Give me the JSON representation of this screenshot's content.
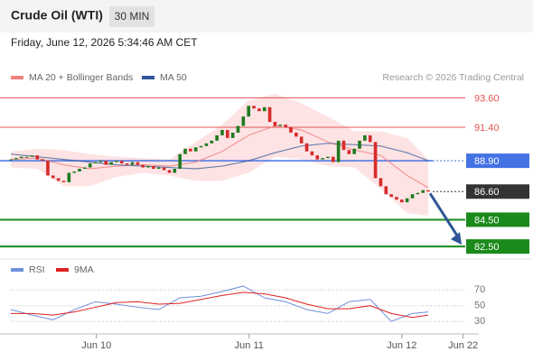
{
  "chart_data": [
    {
      "type": "candlestick",
      "title": "Crude Oil (WTI)",
      "timeframe": "30 MIN",
      "timestamp": "Friday, June 12, 2026 5:34:46 AM CET",
      "credit": "Research © 2026 Trading Central",
      "closes": [
        89.0,
        89.1,
        89.2,
        89.2,
        89.3,
        89.0,
        88.9,
        87.8,
        87.6,
        87.4,
        87.3,
        88.0,
        88.1,
        88.3,
        88.4,
        88.7,
        88.8,
        88.9,
        88.6,
        88.8,
        88.9,
        88.7,
        88.6,
        88.8,
        88.6,
        88.4,
        88.5,
        88.3,
        88.4,
        88.2,
        88.0,
        88.3,
        89.4,
        89.8,
        89.6,
        89.9,
        90.0,
        90.2,
        90.4,
        90.8,
        91.2,
        90.6,
        91.0,
        91.5,
        92.2,
        93.0,
        92.8,
        92.6,
        92.9,
        91.8,
        91.5,
        91.6,
        91.4,
        91.0,
        90.7,
        90.2,
        89.6,
        89.3,
        89.0,
        89.1,
        89.2,
        88.8,
        90.4,
        89.7,
        89.4,
        89.8,
        90.4,
        90.8,
        90.3,
        87.6,
        87.0,
        86.4,
        86.2,
        86.0,
        85.8,
        86.1,
        86.4,
        86.5,
        86.7,
        86.6
      ],
      "up_color": "#1f7a1f",
      "down_color": "#d62b2b",
      "indicator_x": [
        0,
        5,
        10,
        15,
        20,
        25,
        30,
        35,
        40,
        45,
        50,
        55,
        60,
        65,
        70,
        75,
        79
      ],
      "series": [
        {
          "name": "MA 20 + Bollinger Bands",
          "color": "#f08080",
          "values": [
            89.0,
            89.1,
            88.6,
            88.3,
            88.5,
            88.6,
            88.5,
            88.8,
            89.6,
            90.8,
            91.5,
            91.2,
            90.3,
            89.7,
            89.3,
            87.8,
            86.9
          ],
          "upper": [
            89.6,
            89.8,
            89.7,
            89.4,
            89.2,
            89.1,
            89.0,
            90.3,
            91.6,
            93.4,
            93.9,
            93.2,
            92.2,
            91.1,
            91.1,
            90.6,
            89.0
          ],
          "lower": [
            88.4,
            88.3,
            87.0,
            87.0,
            87.7,
            88.0,
            87.8,
            87.4,
            87.4,
            88.0,
            89.2,
            89.0,
            88.5,
            88.4,
            86.8,
            85.0,
            84.8
          ]
        },
        {
          "name": "MA 50",
          "color": "#2f5597",
          "values": [
            89.4,
            89.2,
            89.0,
            88.8,
            88.6,
            88.5,
            88.4,
            88.3,
            88.5,
            88.9,
            89.5,
            90.0,
            90.2,
            90.1,
            90.0,
            89.5,
            88.9
          ]
        }
      ],
      "levels": [
        {
          "value": 93.6,
          "label": "93.60",
          "color": "#e05555",
          "line": "thin",
          "box": false
        },
        {
          "value": 91.4,
          "label": "91.40",
          "color": "#e05555",
          "line": "thin",
          "box": false
        },
        {
          "value": 88.9,
          "label": "88.90",
          "color": "#4472e4",
          "line": "mixed",
          "box": true
        },
        {
          "value": 86.6,
          "label": "86.60",
          "color": "#333333",
          "line": "dotted",
          "box": true
        },
        {
          "value": 84.5,
          "label": "84.50",
          "color": "#1a8a1a",
          "line": "thick",
          "box": true
        },
        {
          "value": 82.5,
          "label": "82.50",
          "color": "#1a8a1a",
          "line": "thick",
          "box": true
        }
      ],
      "xlim": [
        0,
        86
      ],
      "ylim": [
        81.7,
        94.5
      ]
    },
    {
      "type": "line",
      "x": [
        0,
        4,
        8,
        12,
        16,
        20,
        24,
        28,
        32,
        36,
        40,
        44,
        48,
        52,
        56,
        60,
        64,
        68,
        72,
        76,
        79
      ],
      "series": [
        {
          "name": "RSI",
          "color": "#6f8fdc",
          "values": [
            45,
            38,
            32,
            45,
            55,
            52,
            48,
            45,
            60,
            62,
            68,
            75,
            60,
            55,
            45,
            40,
            55,
            58,
            30,
            40,
            42
          ]
        },
        {
          "name": "9MA",
          "color": "#e02020",
          "values": [
            40,
            40,
            38,
            42,
            48,
            54,
            55,
            52,
            53,
            58,
            63,
            67,
            65,
            60,
            52,
            46,
            46,
            50,
            40,
            35,
            38
          ]
        }
      ],
      "xlim": [
        0,
        86
      ],
      "ylim": [
        14,
        83
      ],
      "yticks": [
        30,
        50,
        70
      ],
      "xticks": [
        {
          "value": 16.2,
          "label": "Jun 10"
        },
        {
          "value": 45.1,
          "label": "Jun 11"
        },
        {
          "value": 74,
          "label": "Jun 12"
        },
        {
          "value": 85.6,
          "label": "Jun 22"
        }
      ]
    }
  ]
}
